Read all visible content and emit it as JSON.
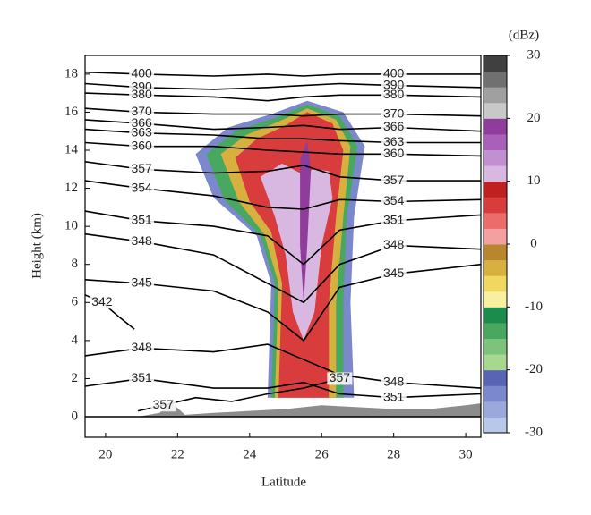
{
  "chart_data": {
    "type": "contour",
    "xlabel": "Latitude",
    "ylabel": "Height (km)",
    "xlim": [
      19.43,
      30.42
    ],
    "ylim": [
      -1.08,
      18.98
    ],
    "xticks": [
      20,
      22,
      24,
      26,
      28,
      30
    ],
    "yticks": [
      0,
      2,
      4,
      6,
      8,
      10,
      12,
      14,
      16,
      18
    ],
    "colorbar": {
      "label": "(dBz)",
      "lim": [
        -30,
        30
      ],
      "ticks": [
        30,
        20,
        10,
        0,
        -10,
        -20,
        -30
      ],
      "colors": [
        "#b8c8e8",
        "#9aa8dc",
        "#7c88cc",
        "#5a64b4",
        "#a8d890",
        "#7cc47c",
        "#48a860",
        "#1c8c4c",
        "#f8f0a0",
        "#f0d860",
        "#d8b040",
        "#b8862c",
        "#f4a0a0",
        "#ec6c6c",
        "#d83c3c",
        "#c02020",
        "#d8b8e0",
        "#c090d0",
        "#a860b8",
        "#903c9c",
        "#c8c8c8",
        "#a0a0a0",
        "#707070",
        "#404040"
      ]
    },
    "terrain": {
      "color": "#8c8c8c",
      "x": [
        20.9,
        21.5,
        21.8,
        22.2,
        23,
        24,
        25,
        26,
        27,
        28,
        29,
        30,
        30.42
      ],
      "y": [
        0,
        0.2,
        0.8,
        0.1,
        0.2,
        0.3,
        0.4,
        0.6,
        0.5,
        0.4,
        0.4,
        0.6,
        0.7
      ]
    },
    "echoes": [
      {
        "value": -25,
        "x": [
          22.5,
          23.4,
          24.6,
          25.6,
          26.6,
          27.2,
          26.9,
          26.8,
          26.9,
          24.5,
          24.6,
          24.2,
          23.0
        ],
        "y": [
          13.8,
          15.2,
          15.9,
          16.6,
          16.0,
          14.2,
          10.5,
          6.0,
          1.0,
          1.0,
          7.0,
          9.5,
          11.5
        ]
      },
      {
        "value": -15,
        "x": [
          22.8,
          23.6,
          24.7,
          25.6,
          26.5,
          27.0,
          26.7,
          26.6,
          26.6,
          24.6,
          24.7,
          24.3,
          23.3
        ],
        "y": [
          13.8,
          15.0,
          15.7,
          16.4,
          15.8,
          14.2,
          10.5,
          6.0,
          1.0,
          1.0,
          7.0,
          9.5,
          11.4
        ]
      },
      {
        "value": -5,
        "x": [
          23.2,
          23.9,
          24.8,
          25.6,
          26.4,
          26.8,
          26.6,
          26.4,
          26.4,
          24.7,
          24.8,
          24.4,
          23.7
        ],
        "y": [
          13.8,
          14.8,
          15.5,
          16.2,
          15.6,
          14.2,
          10.5,
          6.0,
          1.0,
          1.0,
          7.0,
          9.6,
          11.3
        ]
      },
      {
        "value": 5,
        "x": [
          23.6,
          24.2,
          25.0,
          25.6,
          26.3,
          26.6,
          26.4,
          26.2,
          26.2,
          24.8,
          24.9,
          24.6,
          24.0
        ],
        "y": [
          13.6,
          14.6,
          15.3,
          16.0,
          15.4,
          14.0,
          10.5,
          6.0,
          1.0,
          1.0,
          7.0,
          9.7,
          11.3
        ]
      },
      {
        "value": 12,
        "x": [
          24.3,
          24.9,
          25.4,
          25.8,
          26.2,
          26.3,
          26.0,
          25.8,
          25.5,
          25.2,
          25.0,
          24.7
        ],
        "y": [
          12.6,
          13.3,
          12.8,
          13.0,
          12.9,
          11.5,
          9.0,
          5.5,
          4.0,
          5.5,
          8.5,
          10.5
        ]
      },
      {
        "value": 18,
        "x": [
          25.4,
          25.6,
          25.7,
          25.6,
          25.5,
          25.4
        ],
        "y": [
          13.5,
          14.5,
          13.0,
          9.0,
          6.0,
          9.0
        ]
      }
    ],
    "contours": [
      {
        "level": 400,
        "x": [
          19.43,
          21,
          23,
          24.5,
          25.5,
          26.5,
          28,
          30.42
        ],
        "y": [
          18.1,
          18.0,
          17.9,
          18.0,
          17.9,
          18.0,
          18.0,
          18.0
        ]
      },
      {
        "level": 390,
        "x": [
          19.43,
          21,
          23,
          24.5,
          25.5,
          26.5,
          28,
          30.42
        ],
        "y": [
          17.5,
          17.3,
          17.2,
          17.3,
          17.4,
          17.5,
          17.4,
          17.3
        ]
      },
      {
        "level": 380,
        "x": [
          19.43,
          21,
          23,
          24.5,
          25.5,
          26.5,
          28,
          30.42
        ],
        "y": [
          17.0,
          16.9,
          16.8,
          16.6,
          16.8,
          16.9,
          16.9,
          16.8
        ]
      },
      {
        "level": 370,
        "x": [
          19.43,
          21,
          23,
          24.5,
          25.5,
          26.5,
          28,
          30.42
        ],
        "y": [
          16.2,
          16.0,
          15.9,
          15.9,
          15.8,
          15.9,
          15.9,
          15.8
        ]
      },
      {
        "level": 366,
        "x": [
          19.43,
          21,
          23,
          24.5,
          25.5,
          26.5,
          28,
          30.42
        ],
        "y": [
          15.6,
          15.4,
          15.1,
          15.2,
          15.3,
          15.1,
          15.2,
          15.0
        ]
      },
      {
        "level": 363,
        "x": [
          19.43,
          21,
          23,
          24.5,
          25.5,
          26.5,
          28,
          30.42
        ],
        "y": [
          15.1,
          14.9,
          14.8,
          14.6,
          14.6,
          14.5,
          14.4,
          14.4
        ]
      },
      {
        "level": 360,
        "x": [
          19.43,
          21,
          23,
          24.5,
          25.5,
          26.5,
          28,
          30.42
        ],
        "y": [
          14.4,
          14.2,
          14.2,
          14.0,
          13.9,
          13.8,
          13.8,
          13.7
        ]
      },
      {
        "level": 357,
        "x": [
          19.43,
          21,
          23,
          24.5,
          25.5,
          26.5,
          28,
          30.42
        ],
        "y": [
          13.4,
          13.0,
          12.8,
          12.9,
          13.2,
          12.6,
          12.4,
          12.4
        ]
      },
      {
        "level": 354,
        "x": [
          19.43,
          21,
          23,
          24.5,
          25.5,
          26.5,
          28,
          30.42
        ],
        "y": [
          12.4,
          12.0,
          11.6,
          11.0,
          10.9,
          11.4,
          11.3,
          11.4
        ]
      },
      {
        "level": 351,
        "x": [
          19.43,
          21,
          23,
          24.5,
          25.5,
          26.5,
          28,
          30.42
        ],
        "y": [
          10.8,
          10.3,
          10.0,
          9.5,
          8.0,
          9.8,
          10.3,
          10.6
        ]
      },
      {
        "level": 348,
        "x": [
          19.43,
          21,
          23,
          24.5,
          25.5,
          26.5,
          28,
          30.42
        ],
        "y": [
          9.6,
          9.2,
          8.5,
          7.0,
          6.0,
          8.0,
          9.0,
          8.8
        ]
      },
      {
        "level": 345,
        "x": [
          19.43,
          21,
          23,
          24.5,
          25.5,
          26.5,
          28,
          30.42
        ],
        "y": [
          7.2,
          7.0,
          6.6,
          5.5,
          4.0,
          6.8,
          7.5,
          8.0
        ]
      },
      {
        "level": 342,
        "x": [
          19.43,
          19.9,
          20.4,
          20.8
        ],
        "y": [
          6.4,
          6.0,
          5.2,
          4.6
        ]
      },
      {
        "level": 348,
        "x": [
          19.43,
          21,
          23,
          24.5,
          25.5,
          26.5,
          28,
          30.42
        ],
        "y": [
          3.2,
          3.6,
          3.4,
          3.8,
          3.0,
          2.2,
          1.8,
          1.5
        ]
      },
      {
        "level": 351,
        "x": [
          19.43,
          21,
          23,
          24.5,
          25.5,
          26.5,
          28,
          30.42
        ],
        "y": [
          1.6,
          2.0,
          1.5,
          1.5,
          1.8,
          1.2,
          1.0,
          1.2
        ]
      },
      {
        "level": 357,
        "x": [
          20.9,
          21.6,
          22.5,
          23.5,
          24.5,
          25.5,
          26.5
        ],
        "y": [
          0.3,
          0.6,
          1.0,
          0.8,
          1.2,
          1.5,
          2.0
        ]
      }
    ]
  }
}
